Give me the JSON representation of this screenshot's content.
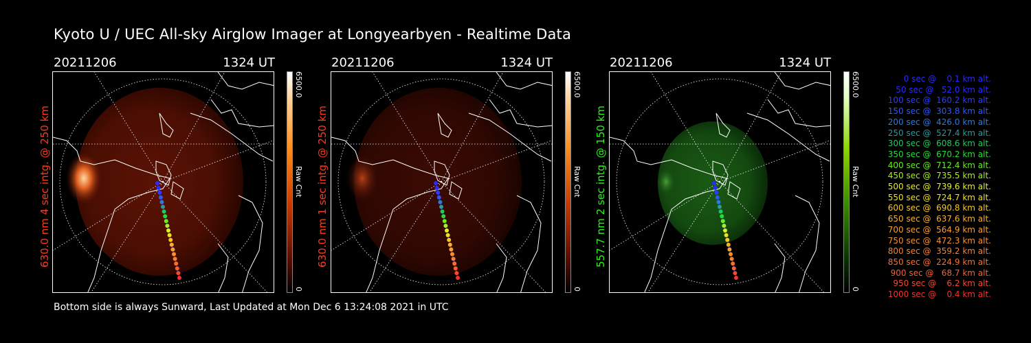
{
  "title": "Kyoto U / UEC All-sky Airglow Imager at Longyearbyen - Realtime Data",
  "panels": [
    {
      "date": "20211206",
      "time": "1324 UT",
      "ylabel": "630.0 nm 4 sec intg. @ 250 km",
      "label_color": "#ff3a1a",
      "cbar_max": "6500.0",
      "cbar_unit": "Raw Cnt",
      "cbar_min": "0"
    },
    {
      "date": "20211206",
      "time": "1324 UT",
      "ylabel": "630.0 nm 1 sec intg. @ 250 km",
      "label_color": "#ff3a1a",
      "cbar_max": "6500.0",
      "cbar_unit": "Raw Cnt",
      "cbar_min": "0"
    },
    {
      "date": "20211206",
      "time": "1324 UT",
      "ylabel": "557.7 nm 2 sec intg. @ 150 km",
      "label_color": "#33ee22",
      "cbar_max": "6500.0",
      "cbar_unit": "Raw Cnt",
      "cbar_min": "0"
    }
  ],
  "footer": "Bottom side is always Sunward, Last Updated at Mon Dec  6 13:24:08 2021 in UTC",
  "legend": [
    {
      "text": "0 sec @    0.1 km alt.",
      "color": "#2a2aff"
    },
    {
      "text": "50 sec @   52.0 km alt.",
      "color": "#2a2aff"
    },
    {
      "text": "100 sec @  160.2 km alt.",
      "color": "#2a3cff"
    },
    {
      "text": "150 sec @  303.8 km alt.",
      "color": "#2a5aff"
    },
    {
      "text": "200 sec @  426.0 km alt.",
      "color": "#2a7ae0"
    },
    {
      "text": "250 sec @  527.4 km alt.",
      "color": "#2a9a9a"
    },
    {
      "text": "300 sec @  608.6 km alt.",
      "color": "#22c860"
    },
    {
      "text": "350 sec @  670.2 km alt.",
      "color": "#22e030"
    },
    {
      "text": "400 sec @  712.4 km alt.",
      "color": "#66ee22"
    },
    {
      "text": "450 sec @  735.5 km alt.",
      "color": "#a8f022"
    },
    {
      "text": "500 sec @  739.6 km alt.",
      "color": "#e0f022"
    },
    {
      "text": "550 sec @  724.7 km alt.",
      "color": "#f0e022"
    },
    {
      "text": "600 sec @  690.8 km alt.",
      "color": "#f8c822"
    },
    {
      "text": "650 sec @  637.6 km alt.",
      "color": "#f8b030"
    },
    {
      "text": "700 sec @  564.9 km alt.",
      "color": "#f8a030"
    },
    {
      "text": "750 sec @  472.3 km alt.",
      "color": "#f89030"
    },
    {
      "text": "800 sec @  359.2 km alt.",
      "color": "#f88030"
    },
    {
      "text": "850 sec @  224.9 km alt.",
      "color": "#f87030"
    },
    {
      "text": "900 sec @   68.7 km alt.",
      "color": "#f86030"
    },
    {
      "text": "950 sec @    6.2 km alt.",
      "color": "#f84830"
    },
    {
      "text": "1000 sec @    0.4 km alt.",
      "color": "#f83030"
    }
  ],
  "colors": {
    "background": "#000000",
    "text": "#ffffff",
    "coast": "#ffffff"
  }
}
